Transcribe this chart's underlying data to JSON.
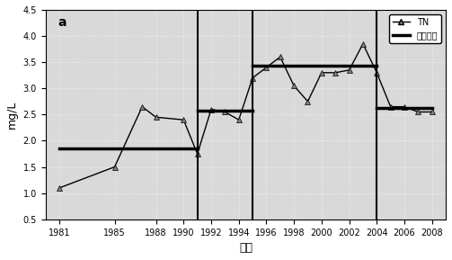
{
  "title": "a",
  "xlabel": "年份",
  "ylabel": "mg/L",
  "ylim": [
    0.5,
    4.5
  ],
  "xlim": [
    1980,
    2009
  ],
  "tn_years": [
    1981,
    1985,
    1987,
    1988,
    1990,
    1991,
    1992,
    1993,
    1994,
    1995,
    1996,
    1997,
    1998,
    1999,
    2000,
    2001,
    2002,
    2003,
    2004,
    2005,
    2006,
    2007,
    2008
  ],
  "tn_values": [
    1.1,
    1.5,
    2.65,
    2.45,
    2.4,
    1.75,
    2.6,
    2.55,
    2.4,
    3.2,
    3.4,
    3.6,
    3.05,
    2.75,
    3.3,
    3.3,
    3.35,
    3.85,
    3.3,
    2.65,
    2.65,
    2.55,
    2.55
  ],
  "stage_lines": [
    {
      "x_start": 1981,
      "x_end": 1991,
      "y": 1.85
    },
    {
      "x_start": 1991,
      "x_end": 1995,
      "y": 2.58
    },
    {
      "x_start": 1995,
      "x_end": 2004,
      "y": 3.43
    },
    {
      "x_start": 2004,
      "x_end": 2008,
      "y": 2.63
    }
  ],
  "vlines": [
    1991,
    1995,
    2004
  ],
  "xticks": [
    1981,
    1985,
    1988,
    1990,
    1992,
    1994,
    1996,
    1998,
    2000,
    2002,
    2004,
    2006,
    2008
  ],
  "yticks": [
    0.5,
    1.0,
    1.5,
    2.0,
    2.5,
    3.0,
    3.5,
    4.0,
    4.5
  ],
  "legend_tn_label": "TN",
  "legend_mean_label": "阶段均值",
  "line_color": "black",
  "mean_line_color": "black",
  "vline_color": "black",
  "bg_color": "#d9d9d9"
}
